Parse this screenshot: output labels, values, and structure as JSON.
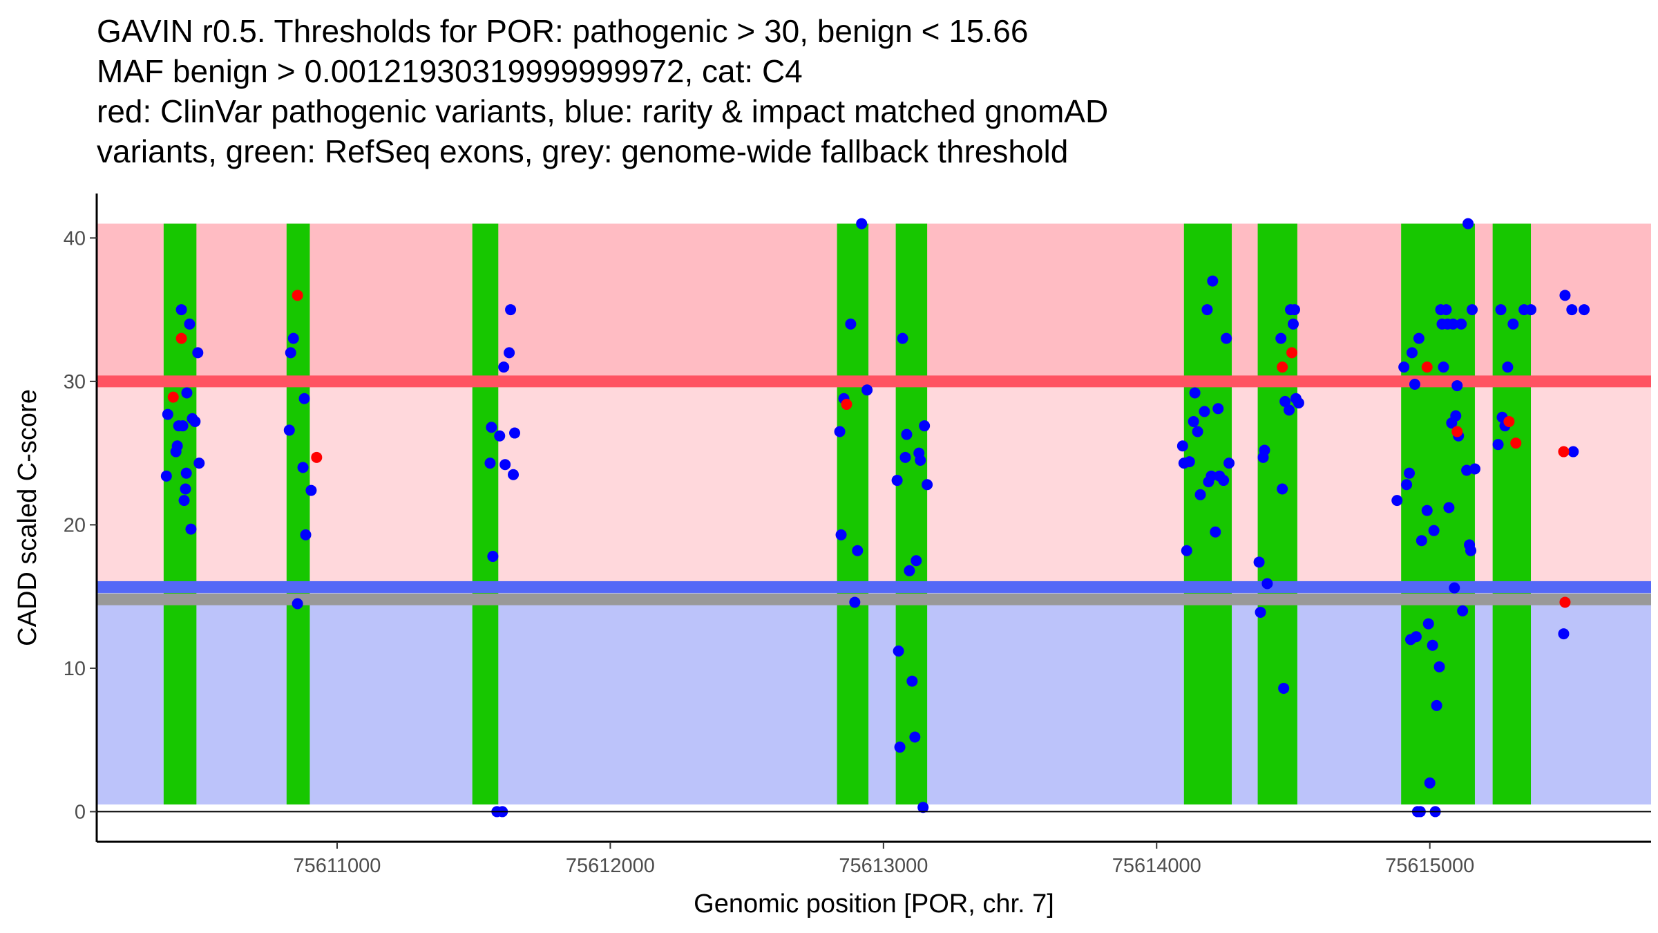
{
  "title_lines": [
    "GAVIN r0.5. Thresholds for POR: pathogenic > 30, benign < 15.66",
    "MAF benign > 0.00121930319999999972, cat: C4",
    "red: ClinVar pathogenic variants, blue: rarity & impact matched gnomAD",
    "variants, green: RefSeq exons, grey: genome-wide fallback threshold"
  ],
  "colors": {
    "pathogenic_region": "#ffbcc3",
    "middle_region": "#ffd8dc",
    "benign_region": "#bcc3fa",
    "pathogenic_line": "#ff5362",
    "benign_line": "#5468f7",
    "fallback_line": "#999999",
    "exon": "#17c700",
    "clinvar_point": "#ff0000",
    "gnomad_point": "#0000ff"
  },
  "chart_data": {
    "type": "scatter",
    "title": "GAVIN r0.5. Thresholds for POR: pathogenic > 30, benign < 15.66",
    "xlabel": "Genomic position [POR, chr. 7]",
    "ylabel": "CADD scaled C-score",
    "xlim": [
      75610120,
      75615810
    ],
    "ylim": [
      -2.1,
      43.1
    ],
    "x_ticks": [
      75611000,
      75612000,
      75613000,
      75614000,
      75615000
    ],
    "x_tick_labels": [
      "75611000",
      "75612000",
      "75613000",
      "75614000",
      "75615000"
    ],
    "y_ticks": [
      0,
      10,
      20,
      30,
      40
    ],
    "y_tick_labels": [
      "0",
      "10",
      "20",
      "30",
      "40"
    ],
    "thresholds": {
      "pathogenic": 30,
      "benign": 15.66,
      "fallback": 14.8,
      "region_x_range": [
        75610120,
        75615810
      ],
      "region_y_range": [
        0.5,
        41
      ]
    },
    "exons": [
      [
        75610365,
        75610485
      ],
      [
        75610815,
        75610900
      ],
      [
        75611495,
        75611590
      ],
      [
        75612830,
        75612945
      ],
      [
        75613045,
        75613160
      ],
      [
        75614100,
        75614275
      ],
      [
        75614370,
        75614515
      ],
      [
        75614895,
        75615165
      ],
      [
        75615230,
        75615370
      ]
    ],
    "series": [
      {
        "name": "ClinVar pathogenic",
        "color_key": "clinvar_point",
        "points": [
          [
            75610400,
            28.9
          ],
          [
            75610430,
            33.0
          ],
          [
            75610855,
            36.0
          ],
          [
            75610925,
            24.7
          ],
          [
            75612865,
            28.4
          ],
          [
            75614460,
            31.0
          ],
          [
            75614495,
            32.0
          ],
          [
            75614990,
            31.0
          ],
          [
            75615100,
            26.5
          ],
          [
            75615290,
            27.2
          ],
          [
            75615315,
            25.7
          ],
          [
            75615490,
            25.1
          ],
          [
            75615495,
            14.6
          ]
        ]
      },
      {
        "name": "gnomAD matched",
        "color_key": "gnomad_point",
        "points": [
          [
            75610375,
            23.4
          ],
          [
            75610380,
            27.7
          ],
          [
            75610410,
            25.1
          ],
          [
            75610415,
            25.5
          ],
          [
            75610420,
            26.9
          ],
          [
            75610430,
            35.0
          ],
          [
            75610435,
            26.9
          ],
          [
            75610440,
            21.7
          ],
          [
            75610445,
            22.5
          ],
          [
            75610448,
            23.6
          ],
          [
            75610450,
            29.2
          ],
          [
            75610460,
            34.0
          ],
          [
            75610465,
            19.7
          ],
          [
            75610470,
            27.4
          ],
          [
            75610480,
            27.2
          ],
          [
            75610490,
            32.0
          ],
          [
            75610495,
            24.3
          ],
          [
            75610825,
            26.6
          ],
          [
            75610830,
            32.0
          ],
          [
            75610840,
            33.0
          ],
          [
            75610855,
            14.5
          ],
          [
            75610875,
            24.0
          ],
          [
            75610880,
            28.8
          ],
          [
            75610885,
            19.3
          ],
          [
            75610905,
            22.4
          ],
          [
            75611560,
            24.3
          ],
          [
            75611565,
            26.8
          ],
          [
            75611570,
            17.8
          ],
          [
            75611585,
            0.0
          ],
          [
            75611595,
            26.2
          ],
          [
            75611605,
            0.0
          ],
          [
            75611610,
            31.0
          ],
          [
            75611615,
            24.2
          ],
          [
            75611630,
            32.0
          ],
          [
            75611635,
            35.0
          ],
          [
            75611645,
            23.5
          ],
          [
            75611650,
            26.4
          ],
          [
            75612840,
            26.5
          ],
          [
            75612845,
            19.3
          ],
          [
            75612855,
            28.8
          ],
          [
            75612880,
            34.0
          ],
          [
            75612895,
            14.6
          ],
          [
            75612905,
            18.2
          ],
          [
            75612920,
            41.0
          ],
          [
            75612940,
            29.4
          ],
          [
            75613050,
            23.1
          ],
          [
            75613055,
            11.2
          ],
          [
            75613060,
            4.5
          ],
          [
            75613070,
            33.0
          ],
          [
            75613080,
            24.7
          ],
          [
            75613085,
            26.3
          ],
          [
            75613095,
            16.8
          ],
          [
            75613105,
            9.1
          ],
          [
            75613115,
            5.2
          ],
          [
            75613120,
            17.5
          ],
          [
            75613130,
            25.0
          ],
          [
            75613135,
            24.5
          ],
          [
            75613145,
            0.3
          ],
          [
            75613150,
            26.9
          ],
          [
            75613160,
            22.8
          ],
          [
            75614095,
            25.5
          ],
          [
            75614100,
            24.3
          ],
          [
            75614110,
            18.2
          ],
          [
            75614120,
            24.4
          ],
          [
            75614135,
            27.2
          ],
          [
            75614140,
            29.2
          ],
          [
            75614150,
            26.5
          ],
          [
            75614160,
            22.1
          ],
          [
            75614175,
            27.9
          ],
          [
            75614185,
            35.0
          ],
          [
            75614190,
            23.0
          ],
          [
            75614200,
            23.4
          ],
          [
            75614205,
            37.0
          ],
          [
            75614215,
            19.5
          ],
          [
            75614225,
            28.1
          ],
          [
            75614230,
            23.4
          ],
          [
            75614245,
            23.1
          ],
          [
            75614255,
            33.0
          ],
          [
            75614265,
            24.3
          ],
          [
            75614375,
            17.4
          ],
          [
            75614380,
            13.9
          ],
          [
            75614390,
            24.7
          ],
          [
            75614395,
            25.2
          ],
          [
            75614405,
            15.9
          ],
          [
            75614455,
            33.0
          ],
          [
            75614460,
            22.5
          ],
          [
            75614465,
            8.6
          ],
          [
            75614470,
            28.6
          ],
          [
            75614485,
            28.0
          ],
          [
            75614490,
            35.0
          ],
          [
            75614500,
            34.0
          ],
          [
            75614505,
            35.0
          ],
          [
            75614510,
            28.8
          ],
          [
            75614520,
            28.5
          ],
          [
            75614880,
            21.7
          ],
          [
            75614905,
            31.0
          ],
          [
            75614915,
            22.8
          ],
          [
            75614925,
            23.6
          ],
          [
            75614930,
            12.0
          ],
          [
            75614935,
            32.0
          ],
          [
            75614945,
            29.8
          ],
          [
            75614950,
            12.2
          ],
          [
            75614955,
            0.0
          ],
          [
            75614960,
            33.0
          ],
          [
            75614965,
            0.0
          ],
          [
            75614970,
            18.9
          ],
          [
            75614990,
            21.0
          ],
          [
            75614995,
            13.1
          ],
          [
            75615000,
            2.0
          ],
          [
            75615010,
            11.6
          ],
          [
            75615015,
            19.6
          ],
          [
            75615020,
            0.0
          ],
          [
            75615025,
            7.4
          ],
          [
            75615035,
            10.1
          ],
          [
            75615040,
            35.0
          ],
          [
            75615045,
            34.0
          ],
          [
            75615050,
            31.0
          ],
          [
            75615060,
            35.0
          ],
          [
            75615065,
            34.0
          ],
          [
            75615070,
            21.2
          ],
          [
            75615080,
            27.1
          ],
          [
            75615085,
            34.0
          ],
          [
            75615090,
            15.6
          ],
          [
            75615095,
            27.6
          ],
          [
            75615100,
            29.7
          ],
          [
            75615105,
            26.2
          ],
          [
            75615115,
            34.0
          ],
          [
            75615120,
            14.0
          ],
          [
            75615135,
            23.8
          ],
          [
            75615140,
            41.0
          ],
          [
            75615145,
            18.6
          ],
          [
            75615150,
            18.2
          ],
          [
            75615155,
            35.0
          ],
          [
            75615165,
            23.9
          ],
          [
            75615250,
            25.6
          ],
          [
            75615260,
            35.0
          ],
          [
            75615265,
            27.5
          ],
          [
            75615275,
            26.9
          ],
          [
            75615285,
            31.0
          ],
          [
            75615305,
            34.0
          ],
          [
            75615345,
            35.0
          ],
          [
            75615370,
            35.0
          ],
          [
            75615490,
            12.4
          ],
          [
            75615495,
            36.0
          ],
          [
            75615520,
            35.0
          ],
          [
            75615525,
            25.1
          ],
          [
            75615565,
            35.0
          ]
        ]
      }
    ]
  }
}
